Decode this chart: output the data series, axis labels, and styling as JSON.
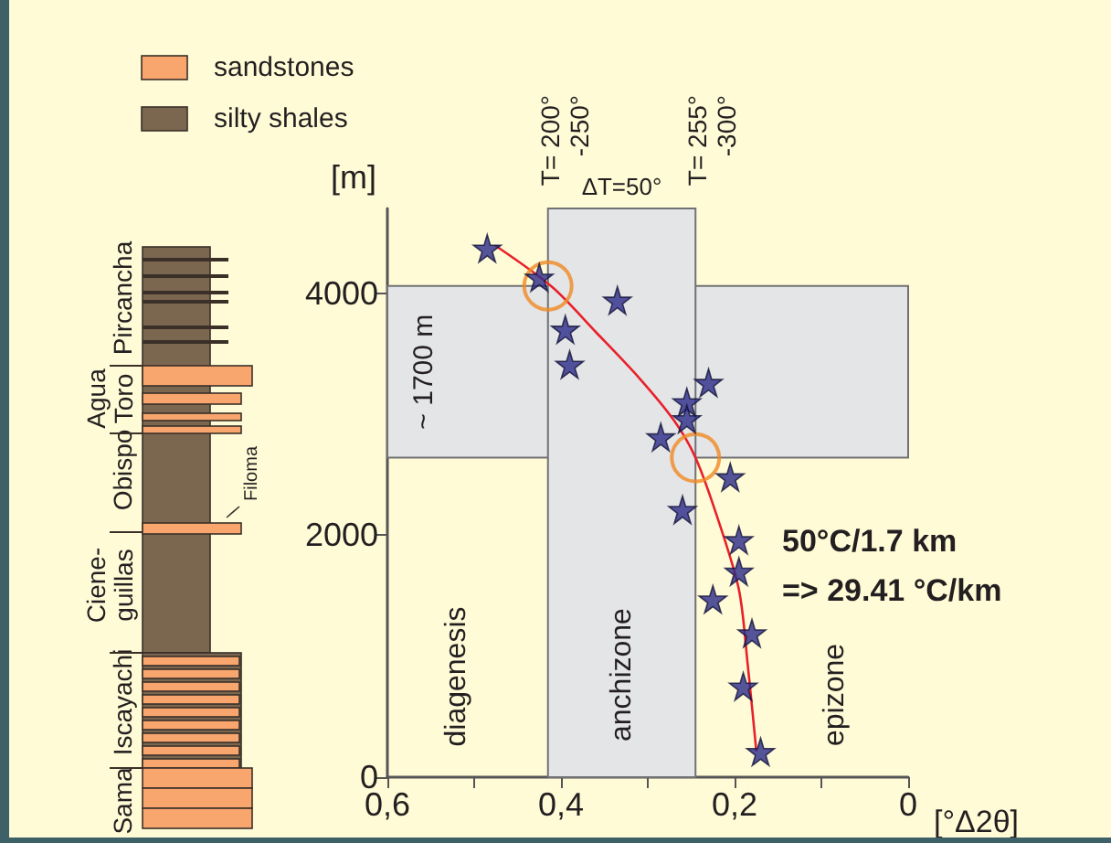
{
  "chart_data": {
    "type": "scatter",
    "xlabel": "[°Δ2θ]",
    "ylabel": "[m]",
    "xlim": [
      0.6,
      0
    ],
    "xticks": [
      {
        "value": 0.6,
        "label": "0,6"
      },
      {
        "value": 0.5,
        "label": null
      },
      {
        "value": 0.4,
        "label": "0,4"
      },
      {
        "value": 0.3,
        "label": null
      },
      {
        "value": 0.2,
        "label": "0,2"
      },
      {
        "value": 0.1,
        "label": null
      },
      {
        "value": 0,
        "label": "0"
      }
    ],
    "ylim": [
      0,
      4700
    ],
    "yticks": [
      0,
      2000,
      4000
    ],
    "grid": false,
    "marker": "star",
    "x": [
      0.485,
      0.425,
      0.335,
      0.395,
      0.39,
      0.23,
      0.255,
      0.255,
      0.285,
      0.205,
      0.26,
      0.195,
      0.195,
      0.225,
      0.18,
      0.19,
      0.17
    ],
    "series": [
      {
        "color": "#2b2a8a",
        "values": [
          4370,
          4130,
          3940,
          3700,
          3410,
          3260,
          3100,
          2960,
          2810,
          2480,
          2210,
          1960,
          1700,
          1470,
          1190,
          750,
          210
        ]
      },
      {
        "type": "line",
        "color": "#e8202a",
        "marker": "none",
        "x": [
          0.475,
          0.41,
          0.36,
          0.31,
          0.27,
          0.245,
          0.22,
          0.195,
          0.185,
          0.175
        ],
        "values": [
          4390,
          4050,
          3680,
          3300,
          2950,
          2640,
          2150,
          1550,
          940,
          220
        ]
      },
      {
        "color": "#f08a24",
        "marker": "circle",
        "x": [
          0.415,
          0.245
        ],
        "values": [
          4060,
          2640
        ]
      }
    ],
    "bands": [
      {
        "axis": "y",
        "from": 2640,
        "to": 4060,
        "label": "~ 1700 m",
        "color": "#e4e5e7"
      },
      {
        "axis": "x",
        "from": 0.415,
        "to": 0.245,
        "label": "anchizone",
        "color": "#e4e5e7"
      }
    ],
    "annotations": [
      "sandstones",
      "silty shales",
      "Pircancha",
      "Agua\nToro",
      "Obispo",
      "Ciene-\nguillas",
      "Iscayachi",
      "Sama",
      "Filoma",
      {
        "text": "T= 200°\n-250°",
        "x": 0.415,
        "y": 4700
      },
      {
        "text": "ΔT=50°",
        "x": 0.33,
        "y": 4700
      },
      {
        "text": "T= 255°\n-300°",
        "x": 0.245,
        "y": 4700
      },
      "diagenesis",
      "epizone",
      "50°C/1.7 km",
      "=> 29.41 °C/km"
    ]
  }
}
